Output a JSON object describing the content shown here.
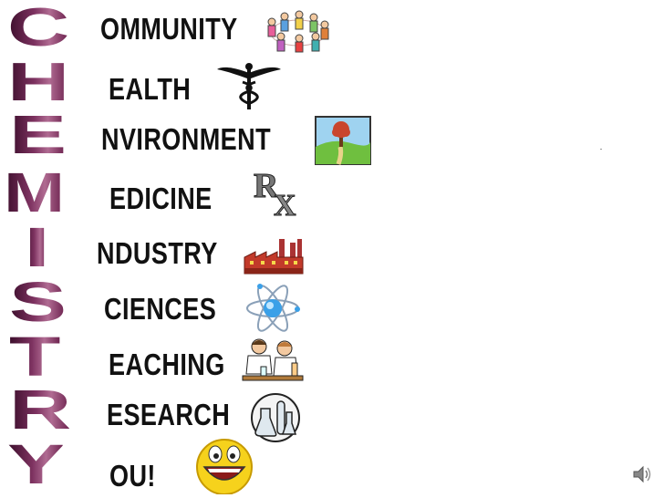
{
  "acrostic": [
    {
      "letter": "C",
      "word": "OMMUNITY",
      "icon": "people-circle-icon"
    },
    {
      "letter": "H",
      "word": "EALTH",
      "icon": "caduceus-icon"
    },
    {
      "letter": "E",
      "word": "NVIRONMENT",
      "icon": "landscape-tree-icon"
    },
    {
      "letter": "M",
      "word": "EDICINE",
      "icon": "rx-prescription-icon"
    },
    {
      "letter": "I",
      "word": "NDUSTRY",
      "icon": "factory-icon"
    },
    {
      "letter": "S",
      "word": "CIENCES",
      "icon": "atom-icon"
    },
    {
      "letter": "T",
      "word": "EACHING",
      "icon": "lab-teachers-icon"
    },
    {
      "letter": "R",
      "word": "ESEARCH",
      "icon": "lab-flasks-icon"
    },
    {
      "letter": "Y",
      "word": "OU!",
      "icon": "smiley-face-icon"
    }
  ],
  "audio_icon": "speaker-icon",
  "colors": {
    "letters": "#6e2450",
    "words": "#111111"
  }
}
